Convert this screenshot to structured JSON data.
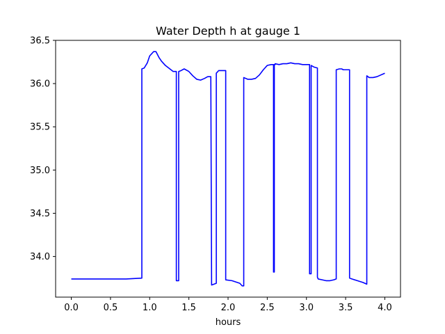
{
  "chart_data": {
    "type": "line",
    "title": "Water Depth h at gauge 1",
    "xlabel": "hours",
    "ylabel": "",
    "xlim": [
      -0.2,
      4.2
    ],
    "ylim": [
      33.53,
      36.5
    ],
    "xticks": [
      "0.0",
      "0.5",
      "1.0",
      "1.5",
      "2.0",
      "2.5",
      "3.0",
      "3.5",
      "4.0"
    ],
    "yticks": [
      "34.0",
      "34.5",
      "35.0",
      "35.5",
      "36.0",
      "36.5"
    ],
    "grid": false,
    "line_color": "#0000ff",
    "series": [
      {
        "x": [
          0.0,
          0.5,
          0.7,
          0.8,
          0.9,
          0.9,
          0.93,
          0.97,
          1.0,
          1.05,
          1.08,
          1.12,
          1.15,
          1.2,
          1.3,
          1.34,
          1.34,
          1.37,
          1.37,
          1.4,
          1.44,
          1.5,
          1.55,
          1.6,
          1.65,
          1.7,
          1.74,
          1.78,
          1.79,
          1.79,
          1.85,
          1.85,
          1.88,
          1.92,
          1.96,
          1.97,
          1.97,
          2.05,
          2.15,
          2.18,
          2.2,
          2.2,
          2.25,
          2.3,
          2.35,
          2.4,
          2.45,
          2.5,
          2.55,
          2.58,
          2.58,
          2.59,
          2.59,
          2.6,
          2.6,
          2.65,
          2.7,
          2.75,
          2.8,
          2.85,
          2.9,
          2.95,
          3.0,
          3.04,
          3.04,
          3.06,
          3.06,
          3.08,
          3.1,
          3.14,
          3.14,
          3.15,
          3.2,
          3.25,
          3.3,
          3.35,
          3.38,
          3.38,
          3.42,
          3.45,
          3.47,
          3.5,
          3.55,
          3.55,
          3.58,
          3.65,
          3.72,
          3.77,
          3.77,
          3.8,
          3.85,
          3.9,
          4.0
        ],
        "y": [
          33.74,
          33.74,
          33.74,
          33.745,
          33.75,
          36.17,
          36.18,
          36.24,
          36.32,
          36.37,
          36.37,
          36.3,
          36.26,
          36.21,
          36.14,
          36.14,
          33.72,
          33.72,
          36.14,
          36.15,
          36.17,
          36.14,
          36.09,
          36.05,
          36.04,
          36.06,
          36.08,
          36.08,
          33.67,
          33.67,
          33.69,
          36.12,
          36.15,
          36.15,
          36.15,
          36.15,
          33.73,
          33.72,
          33.69,
          33.66,
          33.66,
          36.07,
          36.05,
          36.05,
          36.06,
          36.1,
          36.16,
          36.21,
          36.22,
          36.22,
          33.82,
          33.82,
          36.22,
          36.22,
          36.23,
          36.22,
          36.23,
          36.23,
          36.24,
          36.23,
          36.23,
          36.22,
          36.22,
          36.22,
          33.8,
          33.8,
          36.21,
          36.2,
          36.19,
          36.18,
          33.76,
          33.74,
          33.73,
          33.72,
          33.72,
          33.73,
          33.74,
          36.16,
          36.17,
          36.17,
          36.16,
          36.16,
          36.16,
          33.75,
          33.74,
          33.72,
          33.7,
          33.68,
          36.09,
          36.07,
          36.07,
          36.08,
          36.12
        ]
      }
    ]
  }
}
